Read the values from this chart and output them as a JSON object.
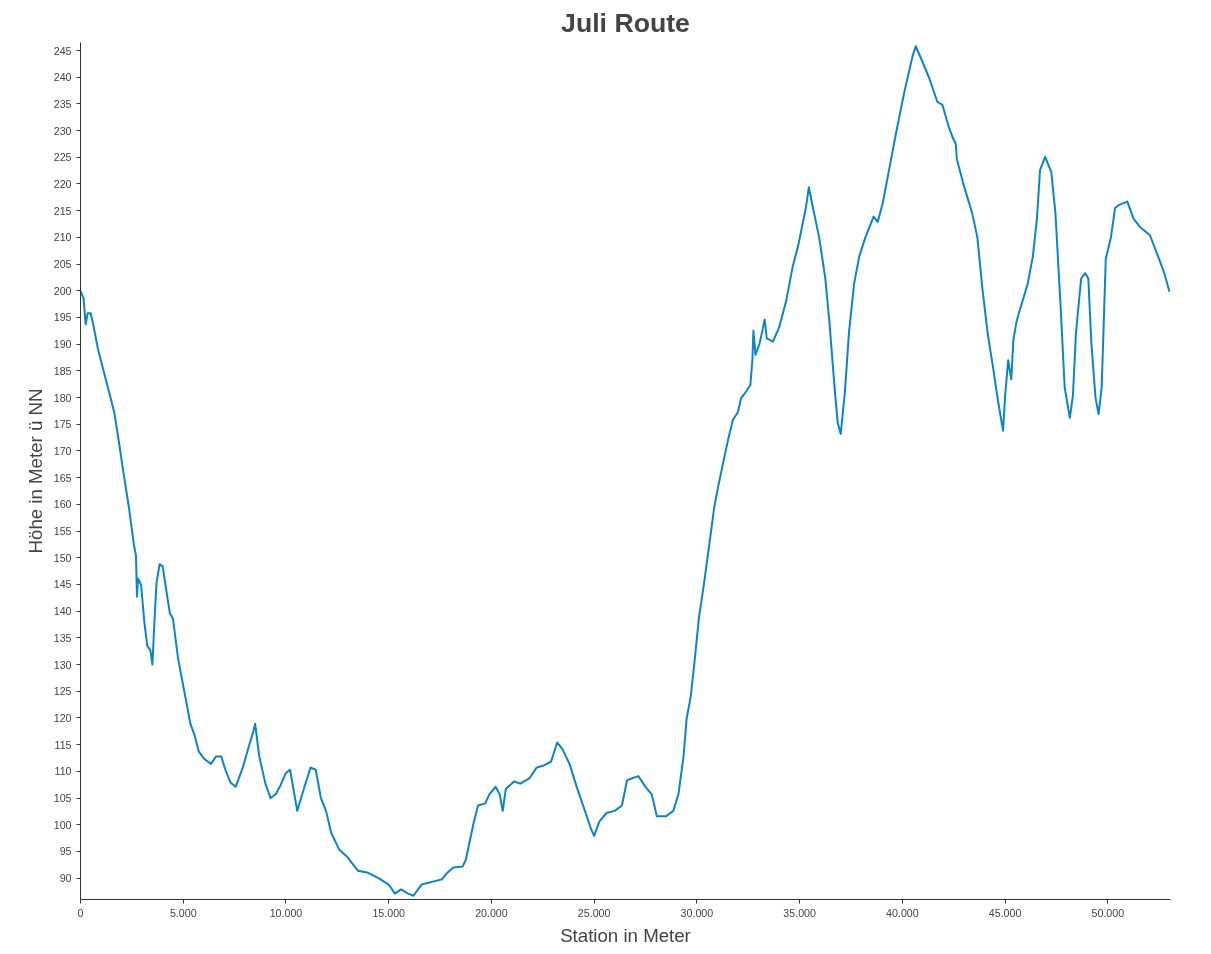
{
  "chart_data": {
    "type": "line",
    "title": "Juli Route",
    "xlabel": "Station in Meter",
    "ylabel": "Höhe in Meter ü NN",
    "grid": false,
    "marker": "none",
    "line_style": "solid",
    "xlim": [
      0,
      53050
    ],
    "ylim": [
      86,
      246.5
    ],
    "xticks": [
      0,
      {
        "value": 5000,
        "label": "5.000"
      },
      {
        "value": 10000,
        "label": "10.000"
      },
      {
        "value": 15000,
        "label": "15.000"
      },
      {
        "value": 20000,
        "label": "20.000"
      },
      {
        "value": 25000,
        "label": "25.000"
      },
      {
        "value": 30000,
        "label": "30.000"
      },
      {
        "value": 35000,
        "label": "35.000"
      },
      {
        "value": 40000,
        "label": "40.000"
      },
      {
        "value": 45000,
        "label": "45.000"
      },
      {
        "value": 50000,
        "label": "50.000"
      }
    ],
    "yticks": [
      90,
      95,
      100,
      105,
      110,
      115,
      120,
      125,
      130,
      135,
      140,
      145,
      150,
      155,
      160,
      165,
      170,
      175,
      180,
      185,
      190,
      195,
      200,
      205,
      210,
      215,
      220,
      225,
      230,
      235,
      240,
      245
    ],
    "series": [
      {
        "color": "#0a85c8",
        "x": [
          0,
          150,
          250,
          350,
          500,
          650,
          850,
          1150,
          1400,
          1650,
          1850,
          2100,
          2350,
          2600,
          2700,
          2750,
          2800,
          2950,
          3100,
          3250,
          3400,
          3500,
          3600,
          3700,
          3850,
          4000,
          4200,
          4350,
          4500,
          4750,
          5050,
          5350,
          5550,
          5750,
          6000,
          6350,
          6600,
          6850,
          7050,
          7300,
          7550,
          7900,
          8200,
          8400,
          8500,
          8700,
          9000,
          9250,
          9500,
          9700,
          10000,
          10200,
          10550,
          10900,
          11200,
          11450,
          11700,
          11950,
          12200,
          12600,
          13000,
          13500,
          14000,
          14500,
          15000,
          15300,
          15600,
          15950,
          16200,
          16600,
          17200,
          17600,
          17800,
          18150,
          18600,
          18750,
          19150,
          19350,
          19700,
          19900,
          20200,
          20400,
          20550,
          20700,
          21100,
          21400,
          21850,
          22200,
          22550,
          22900,
          23200,
          23450,
          23800,
          24150,
          24550,
          24850,
          25000,
          25250,
          25600,
          26000,
          26350,
          26600,
          26850,
          27150,
          27500,
          27800,
          28050,
          28500,
          28850,
          29100,
          29350,
          29500,
          29700,
          29900,
          30100,
          30350,
          30600,
          30850,
          31050,
          31250,
          31500,
          31750,
          32000,
          32150,
          32350,
          32600,
          32700,
          32750,
          32850,
          33050,
          33300,
          33400,
          33700,
          34000,
          34350,
          34650,
          34950,
          35300,
          35450,
          35650,
          35950,
          36250,
          36450,
          36700,
          36850,
          37000,
          37200,
          37400,
          37650,
          37900,
          38200,
          38600,
          38800,
          39050,
          39350,
          39700,
          40100,
          40500,
          40650,
          40900,
          41300,
          41700,
          41950,
          42250,
          42450,
          42600,
          42650,
          43000,
          43400,
          43650,
          43900,
          44150,
          44400,
          44650,
          44900,
          45000,
          45150,
          45300,
          45400,
          45550,
          45700,
          46100,
          46350,
          46550,
          46700,
          46950,
          47250,
          47450,
          47700,
          47900,
          48150,
          48300,
          48450,
          48700,
          48900,
          49050,
          49200,
          49400,
          49550,
          49700,
          49900,
          50150,
          50350,
          50550,
          50950,
          51250,
          51550,
          52050,
          52450,
          52750,
          53000
        ],
        "values": [
          200,
          198.6,
          193.7,
          195.8,
          195.8,
          193.1,
          189.1,
          184.6,
          180.9,
          177.1,
          172.2,
          165.7,
          159.6,
          152.4,
          150.4,
          142.7,
          146.1,
          144.9,
          138.2,
          133.5,
          132.7,
          130,
          138.2,
          145.3,
          148.8,
          148.4,
          143.3,
          139.6,
          138.6,
          131.1,
          125,
          118.9,
          116.8,
          113.8,
          112.4,
          111.4,
          112.8,
          112.8,
          110.3,
          107.9,
          107.1,
          110.7,
          114.8,
          117.3,
          118.9,
          112.8,
          107.7,
          105,
          105.7,
          107.1,
          109.7,
          110.3,
          102.6,
          107.1,
          110.7,
          110.3,
          105,
          102.6,
          98.5,
          95.3,
          93.9,
          91.4,
          91,
          90,
          88.8,
          87.1,
          87.9,
          87.1,
          86.7,
          88.8,
          89.4,
          89.8,
          90.8,
          92,
          92.2,
          93.4,
          100.6,
          103.6,
          104,
          105.7,
          107.1,
          105.7,
          102.6,
          106.7,
          108.1,
          107.7,
          108.7,
          110.7,
          111.1,
          111.8,
          115.4,
          114.2,
          111.4,
          107.1,
          102.6,
          99.2,
          97.9,
          100.6,
          102.2,
          102.6,
          103.6,
          108.3,
          108.7,
          109.1,
          107.1,
          105.7,
          101.6,
          101.6,
          102.6,
          105.7,
          112.8,
          119.9,
          124,
          131.1,
          138.8,
          145.3,
          152.4,
          159.6,
          163.6,
          167.3,
          171.8,
          175.8,
          177.3,
          179.9,
          180.9,
          182.3,
          187,
          192.5,
          188,
          190.1,
          194.6,
          191.1,
          190.5,
          193.1,
          198.2,
          204.3,
          208.8,
          215.5,
          219.4,
          215.5,
          210,
          202.3,
          194.1,
          181.9,
          175.4,
          173.2,
          180.9,
          192.1,
          201.3,
          206.4,
          210,
          213.9,
          212.9,
          216.5,
          222.6,
          229.7,
          237.3,
          244,
          245.8,
          243.6,
          239.9,
          235.4,
          234.8,
          230.8,
          228.7,
          227.5,
          224.7,
          219.6,
          214.5,
          210,
          200.2,
          192.1,
          186,
          179.5,
          173.8,
          180.3,
          187,
          183.4,
          190.7,
          194.1,
          196.2,
          201.3,
          206.4,
          213.5,
          222.6,
          225.1,
          222.2,
          214.5,
          197.2,
          181.9,
          176.2,
          180.3,
          192.1,
          202.3,
          203.3,
          202.3,
          190.1,
          180,
          176.9,
          181.9,
          206,
          210,
          215.5,
          216.1,
          216.7,
          213.5,
          212,
          210.4,
          206.4,
          203.3,
          199.8
        ]
      }
    ]
  }
}
